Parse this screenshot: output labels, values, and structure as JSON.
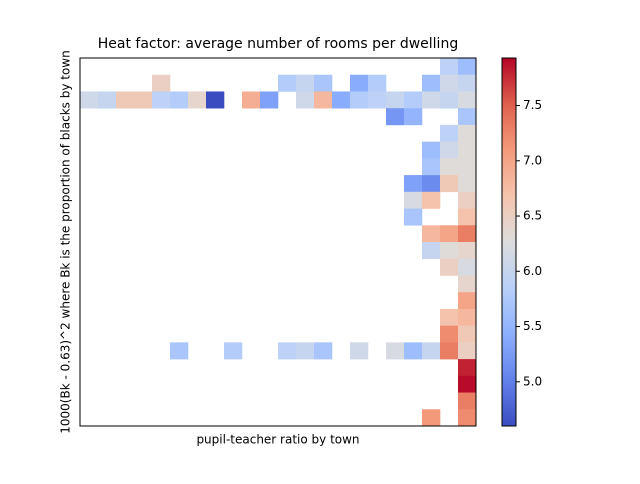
{
  "chart_data": {
    "type": "heatmap",
    "title": "Heat factor: average number of rooms per dwelling",
    "xlabel": "pupil-teacher ratio by town",
    "ylabel": "1000(Bk - 0.63)^2 where Bk is the proportion of blacks by town",
    "colormap": "coolwarm",
    "clim": [
      4.6,
      7.93
    ],
    "cticks": [
      {
        "value": 5,
        "label": "5.0"
      },
      5.5,
      {
        "value": 6,
        "label": "6.0"
      },
      6.5,
      {
        "value": 7,
        "label": "7.0"
      },
      7.5
    ],
    "values": [
      [
        null,
        null,
        null,
        null,
        null,
        null,
        null,
        null,
        null,
        null,
        null,
        null,
        null,
        null,
        null,
        null,
        null,
        null,
        null,
        null,
        5.9,
        5.6
      ],
      [
        null,
        null,
        null,
        null,
        6.5,
        null,
        null,
        null,
        null,
        null,
        null,
        5.8,
        6.0,
        5.7,
        null,
        5.4,
        5.8,
        null,
        null,
        5.6,
        6.1,
        6.0
      ],
      [
        6.1,
        6.0,
        6.6,
        6.6,
        5.9,
        5.8,
        6.4,
        4.6,
        null,
        6.9,
        5.3,
        null,
        6.1,
        6.8,
        5.4,
        5.8,
        5.9,
        6.0,
        5.8,
        6.1,
        6.0,
        6.2
      ],
      [
        null,
        null,
        null,
        null,
        null,
        null,
        null,
        null,
        null,
        null,
        null,
        null,
        null,
        null,
        null,
        null,
        null,
        5.2,
        5.5,
        null,
        null,
        5.7
      ],
      [
        null,
        null,
        null,
        null,
        null,
        null,
        null,
        null,
        null,
        null,
        null,
        null,
        null,
        null,
        null,
        null,
        null,
        null,
        null,
        null,
        5.9,
        6.3
      ],
      [
        null,
        null,
        null,
        null,
        null,
        null,
        null,
        null,
        null,
        null,
        null,
        null,
        null,
        null,
        null,
        null,
        null,
        null,
        null,
        5.6,
        6.1,
        6.3
      ],
      [
        null,
        null,
        null,
        null,
        null,
        null,
        null,
        null,
        null,
        null,
        null,
        null,
        null,
        null,
        null,
        null,
        null,
        null,
        null,
        5.7,
        6.3,
        6.3
      ],
      [
        null,
        null,
        null,
        null,
        null,
        null,
        null,
        null,
        null,
        null,
        null,
        null,
        null,
        null,
        null,
        null,
        null,
        null,
        5.3,
        5.1,
        6.6,
        6.3
      ],
      [
        null,
        null,
        null,
        null,
        null,
        null,
        null,
        null,
        null,
        null,
        null,
        null,
        null,
        null,
        null,
        null,
        null,
        null,
        6.2,
        6.7,
        null,
        6.5
      ],
      [
        null,
        null,
        null,
        null,
        null,
        null,
        null,
        null,
        null,
        null,
        null,
        null,
        null,
        null,
        null,
        null,
        null,
        null,
        5.7,
        null,
        null,
        6.7
      ],
      [
        null,
        null,
        null,
        null,
        null,
        null,
        null,
        null,
        null,
        null,
        null,
        null,
        null,
        null,
        null,
        null,
        null,
        null,
        null,
        6.8,
        7.0,
        7.3
      ],
      [
        null,
        null,
        null,
        null,
        null,
        null,
        null,
        null,
        null,
        null,
        null,
        null,
        null,
        null,
        null,
        null,
        null,
        null,
        null,
        6.0,
        6.3,
        6.4
      ],
      [
        null,
        null,
        null,
        null,
        null,
        null,
        null,
        null,
        null,
        null,
        null,
        null,
        null,
        null,
        null,
        null,
        null,
        null,
        null,
        null,
        6.5,
        6.2
      ],
      [
        null,
        null,
        null,
        null,
        null,
        null,
        null,
        null,
        null,
        null,
        null,
        null,
        null,
        null,
        null,
        null,
        null,
        null,
        null,
        null,
        null,
        6.4
      ],
      [
        null,
        null,
        null,
        null,
        null,
        null,
        null,
        null,
        null,
        null,
        null,
        null,
        null,
        null,
        null,
        null,
        null,
        null,
        null,
        null,
        null,
        7.0
      ],
      [
        null,
        null,
        null,
        null,
        null,
        null,
        null,
        null,
        null,
        null,
        null,
        null,
        null,
        null,
        null,
        null,
        null,
        null,
        null,
        null,
        6.7,
        6.8
      ],
      [
        null,
        null,
        null,
        null,
        null,
        null,
        null,
        null,
        null,
        null,
        null,
        null,
        null,
        null,
        null,
        null,
        null,
        null,
        null,
        null,
        7.2,
        6.6
      ],
      [
        null,
        null,
        null,
        null,
        null,
        5.7,
        null,
        null,
        5.8,
        null,
        null,
        5.9,
        6.0,
        5.7,
        null,
        6.1,
        null,
        6.2,
        5.6,
        6.0,
        7.3,
        6.5
      ],
      [
        null,
        null,
        null,
        null,
        null,
        null,
        null,
        null,
        null,
        null,
        null,
        null,
        null,
        null,
        null,
        null,
        null,
        null,
        null,
        null,
        null,
        7.8
      ],
      [
        null,
        null,
        null,
        null,
        null,
        null,
        null,
        null,
        null,
        null,
        null,
        null,
        null,
        null,
        null,
        null,
        null,
        null,
        null,
        null,
        null,
        7.9
      ],
      [
        null,
        null,
        null,
        null,
        null,
        null,
        null,
        null,
        null,
        null,
        null,
        null,
        null,
        null,
        null,
        null,
        null,
        null,
        null,
        null,
        null,
        7.3
      ],
      [
        null,
        null,
        null,
        null,
        null,
        null,
        null,
        null,
        null,
        null,
        null,
        null,
        null,
        null,
        null,
        null,
        null,
        null,
        null,
        7.1,
        null,
        7.2
      ]
    ]
  }
}
